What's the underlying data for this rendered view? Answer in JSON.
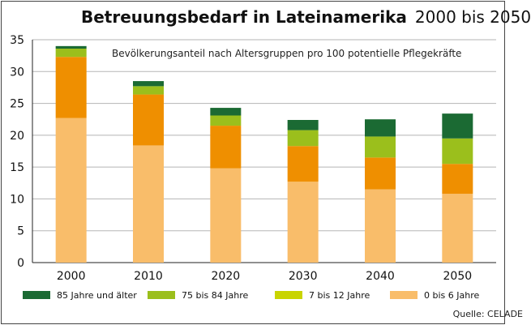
{
  "title": "Betreuungsbedarf in Lateinamerika",
  "title_range": "2000 bis 2050",
  "subtitle": "Bevölkerungsanteil nach Altersgruppen pro 100 potentielle Pflegekräfte",
  "source": "Quelle: CELADE",
  "chart_data": {
    "type": "bar",
    "stacked": true,
    "categories": [
      "2000",
      "2010",
      "2020",
      "2030",
      "2040",
      "2050"
    ],
    "series": [
      {
        "name": "0 bis 6 Jahre",
        "color": "#f9bd6a",
        "values": [
          22.7,
          18.4,
          14.8,
          12.7,
          11.5,
          10.8
        ]
      },
      {
        "name": "7 bis 12 Jahre",
        "color": "#ef8f00",
        "values": [
          9.6,
          8.0,
          6.7,
          5.6,
          5.0,
          4.7
        ]
      },
      {
        "name": "75 bis 84 Jahre",
        "color": "#9bbf1c",
        "values": [
          1.3,
          1.3,
          1.6,
          2.5,
          3.3,
          4.0
        ]
      },
      {
        "name": "85 Jahre und älter",
        "color": "#1b6a33",
        "values": [
          0.4,
          0.8,
          1.2,
          1.6,
          2.7,
          3.9
        ]
      }
    ],
    "ylim": [
      0,
      35
    ],
    "yticks": [
      0,
      5,
      10,
      15,
      20,
      25,
      30,
      35
    ],
    "grid": true,
    "legend_position": "bottom"
  },
  "legend_items": [
    {
      "label": "85 Jahre und älter",
      "color": "#1b6a33"
    },
    {
      "label": "75 bis 84 Jahre",
      "color": "#9bbf1c"
    },
    {
      "label": "7 bis 12 Jahre",
      "color": "#c9d400"
    },
    {
      "label": "0 bis 6 Jahre",
      "color": "#f9bd6a"
    }
  ]
}
